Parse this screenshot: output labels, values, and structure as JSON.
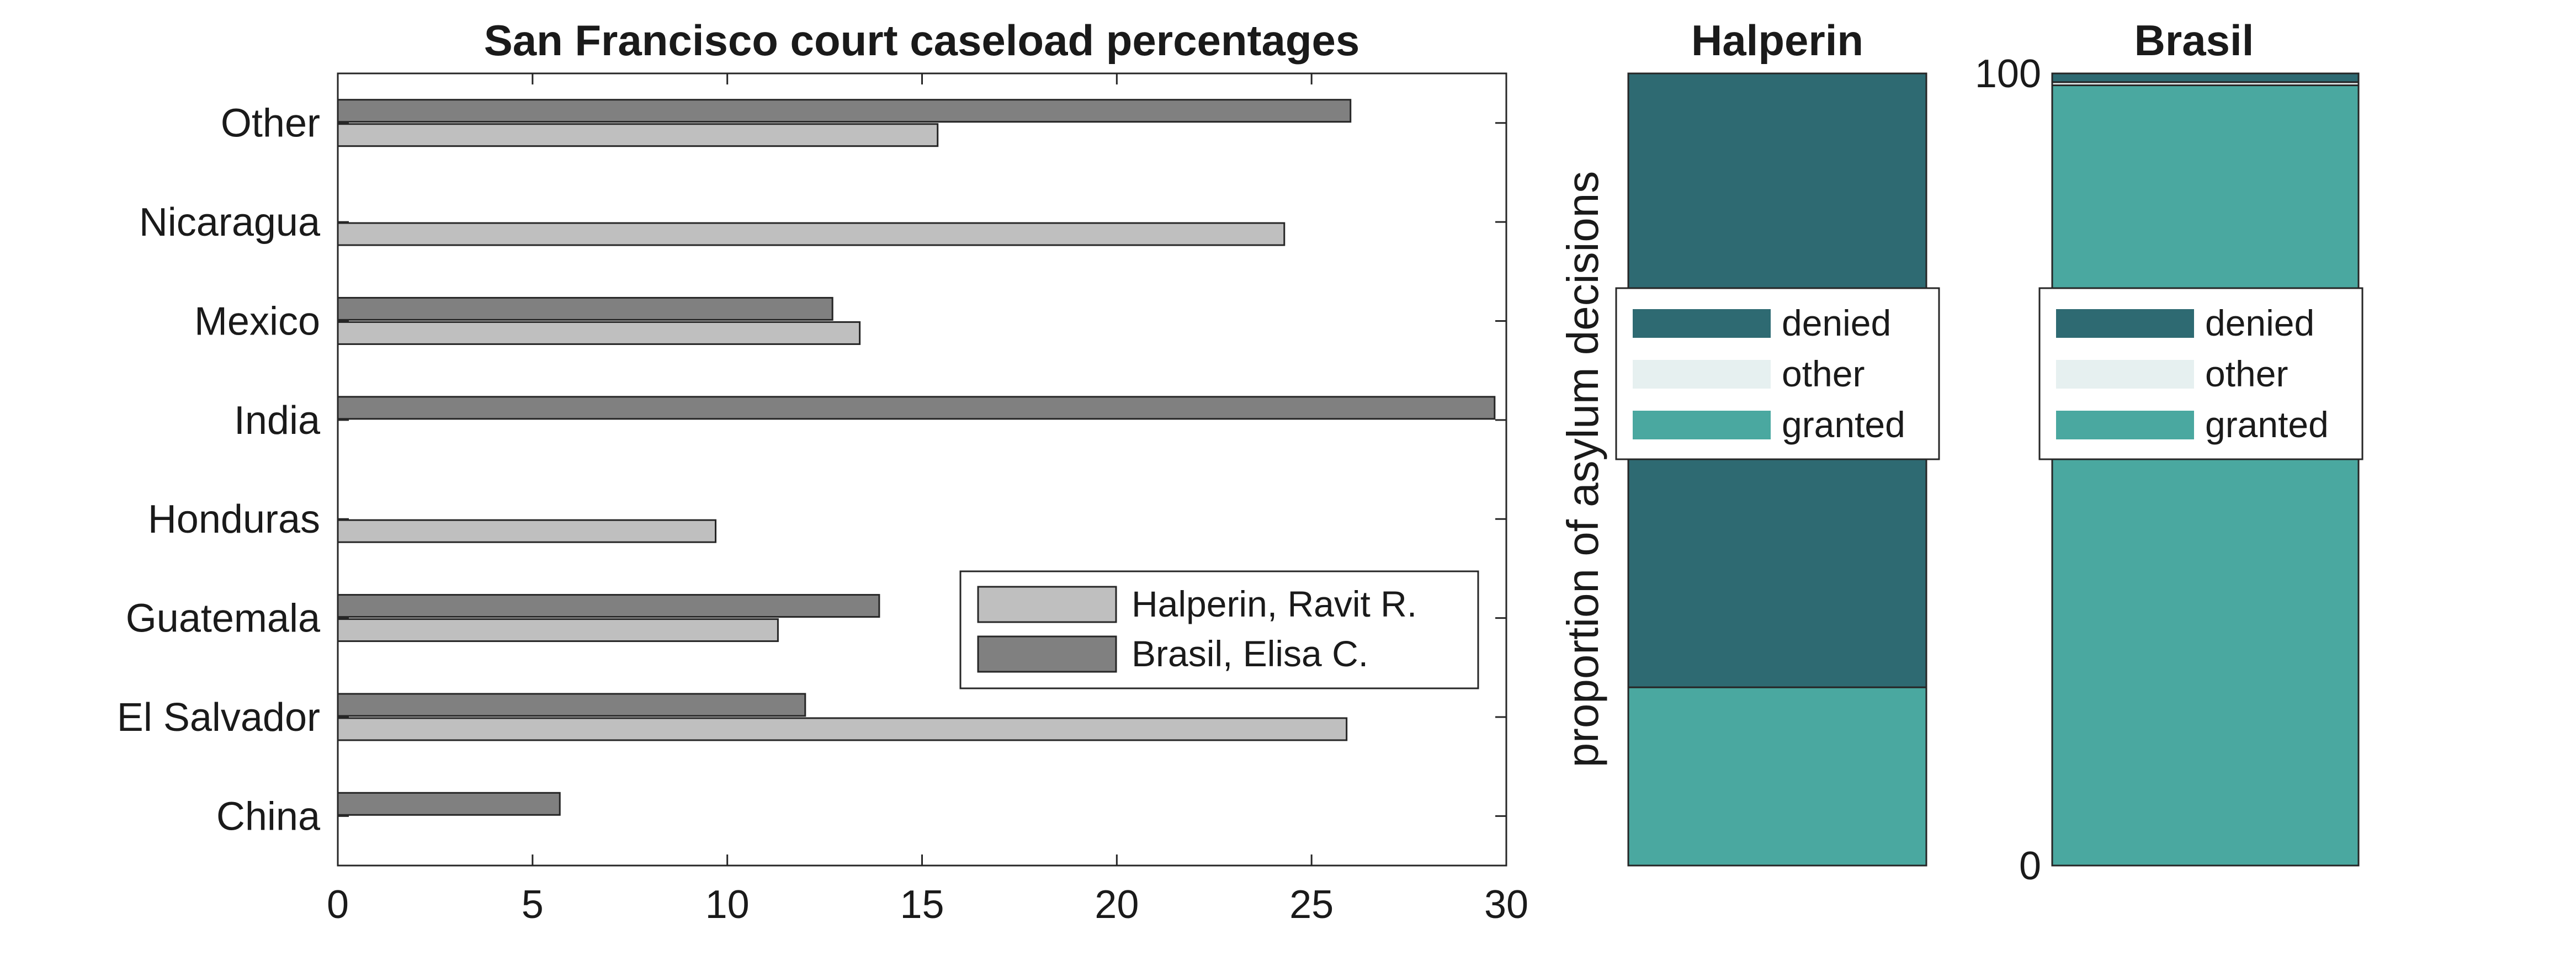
{
  "chart_data": [
    {
      "type": "bar",
      "orientation": "horizontal",
      "title": "San Francisco court caseload percentages",
      "categories": [
        "China",
        "El Salvador",
        "Guatemala",
        "Honduras",
        "India",
        "Mexico",
        "Nicaragua",
        "Other"
      ],
      "series": [
        {
          "name": "Halperin, Ravit R.",
          "color": "#bfbfbf",
          "values": [
            0,
            25.9,
            11.3,
            9.7,
            0,
            13.4,
            24.3,
            15.4
          ]
        },
        {
          "name": "Brasil, Elisa C.",
          "color": "#808080",
          "values": [
            5.7,
            12.0,
            13.9,
            0,
            29.7,
            12.7,
            0,
            26.0
          ]
        }
      ],
      "xlim": [
        0,
        30
      ],
      "xticks": [
        0,
        5,
        10,
        15,
        20,
        25,
        30
      ],
      "grid": false,
      "legend_position": "lower-right"
    },
    {
      "type": "bar",
      "stacked": true,
      "title": "Halperin",
      "ylabel": "proportion of asylum decisions",
      "ylim": [
        0,
        100
      ],
      "segments": [
        {
          "name": "granted",
          "color": "#4aa8a0",
          "value": 22.5
        },
        {
          "name": "other",
          "color": "#e6f0f0",
          "value": 0
        },
        {
          "name": "denied",
          "color": "#2e6a72",
          "value": 77.5
        }
      ],
      "legend_position": "center",
      "legend_order": [
        "denied",
        "other",
        "granted"
      ]
    },
    {
      "type": "bar",
      "stacked": true,
      "title": "Brasil",
      "ylim": [
        0,
        100
      ],
      "yticks": [
        0,
        100
      ],
      "segments": [
        {
          "name": "granted",
          "color": "#4aa8a0",
          "value": 98.5
        },
        {
          "name": "other",
          "color": "#e6f0f0",
          "value": 0.4
        },
        {
          "name": "denied",
          "color": "#2e6a72",
          "value": 1.1
        }
      ],
      "legend_position": "center",
      "legend_order": [
        "denied",
        "other",
        "granted"
      ]
    }
  ]
}
